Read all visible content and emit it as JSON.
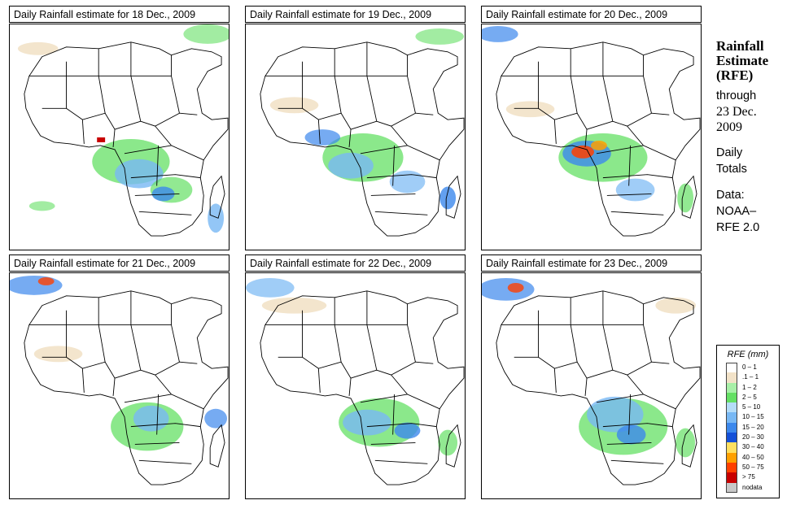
{
  "panels": [
    {
      "title": "Daily Rainfall estimate for  18 Dec., 2009"
    },
    {
      "title": "Daily Rainfall estimate for  19 Dec., 2009"
    },
    {
      "title": "Daily Rainfall estimate for  20 Dec., 2009"
    },
    {
      "title": "Daily Rainfall estimate for  21 Dec., 2009"
    },
    {
      "title": "Daily Rainfall estimate for  22 Dec., 2009"
    },
    {
      "title": "Daily Rainfall estimate for  23 Dec., 2009"
    }
  ],
  "side": {
    "title_line1": "Rainfall",
    "title_line2": "Estimate",
    "title_line3": "(RFE)",
    "through": "through",
    "date_line1": "23 Dec.",
    "date_line2": "2009",
    "daily_line1": "Daily",
    "daily_line2": "Totals",
    "data_label": "Data:",
    "source_line1": "NOAA–",
    "source_line2": "RFE 2.0"
  },
  "legend": {
    "title": "RFE (mm)",
    "items": [
      {
        "label": "0 – 1",
        "color": "#ffffff"
      },
      {
        "label": ".1 – 1",
        "color": "#f2e2c8"
      },
      {
        "label": "1 – 2",
        "color": "#a8f0a8"
      },
      {
        "label": "2 – 5",
        "color": "#64e064"
      },
      {
        "label": "5 – 10",
        "color": "#b4dcf8"
      },
      {
        "label": "10 – 15",
        "color": "#78b8f4"
      },
      {
        "label": "15 – 20",
        "color": "#3c88ec"
      },
      {
        "label": "20 – 30",
        "color": "#1450d8"
      },
      {
        "label": "30 – 40",
        "color": "#ffe060"
      },
      {
        "label": "40 – 50",
        "color": "#ffa000"
      },
      {
        "label": "50 – 75",
        "color": "#ff4000"
      },
      {
        "label": "> 75",
        "color": "#c80000"
      },
      {
        "label": "nodata",
        "color": "#c8c8c8"
      }
    ]
  }
}
